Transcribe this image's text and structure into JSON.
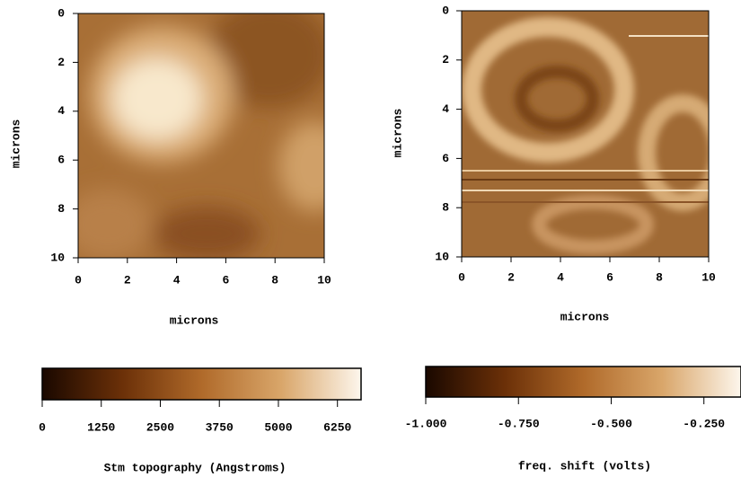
{
  "chart_data": [
    {
      "type": "image",
      "xlabel": "microns",
      "ylabel": "microns",
      "xlim": [
        0,
        10
      ],
      "ylim": [
        0,
        10
      ],
      "y_inverted": true,
      "xticks": [
        0,
        2,
        4,
        6,
        8,
        10
      ],
      "yticks": [
        0,
        2,
        4,
        6,
        8,
        10
      ],
      "colorbar": {
        "label": "Stm topography (Angstroms)",
        "lim": [
          0,
          6750
        ],
        "ticks": [
          0,
          1250,
          2500,
          3750,
          5000,
          6250
        ],
        "colors": [
          "#1a0800",
          "#6b3008",
          "#b06a2a",
          "#d9a66a",
          "#fdf6ec"
        ]
      }
    },
    {
      "type": "image",
      "xlabel": "microns",
      "ylabel": "microns",
      "xlim": [
        0,
        10
      ],
      "ylim": [
        0,
        10
      ],
      "y_inverted": true,
      "xticks": [
        0,
        2,
        4,
        6,
        8,
        10
      ],
      "yticks": [
        0,
        2,
        4,
        6,
        8,
        10
      ],
      "colorbar": {
        "label": "freq. shift (volts)",
        "lim": [
          -1,
          -0.15
        ],
        "ticks": [
          {
            "value": -1,
            "label": "-1.000"
          },
          {
            "value": -0.75,
            "label": "-0.750"
          },
          {
            "value": -0.5,
            "label": "-0.500"
          },
          {
            "value": -0.25,
            "label": "-0.250"
          }
        ],
        "colors": [
          "#1a0800",
          "#6b3008",
          "#b06a2a",
          "#d9a66a",
          "#fdf6ec"
        ]
      }
    }
  ]
}
